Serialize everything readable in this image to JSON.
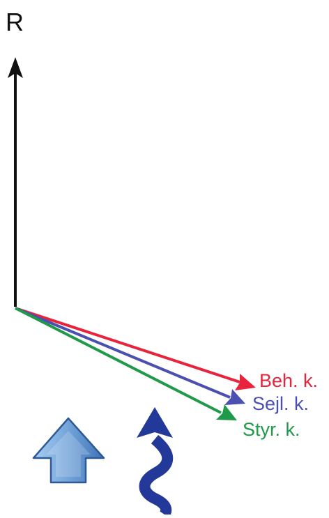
{
  "diagram": {
    "axis_label": "R",
    "vectors": [
      {
        "id": "beh",
        "label": "Beh. k.",
        "color": "#e8233c"
      },
      {
        "id": "sejl",
        "label": "Sejl. k.",
        "color": "#4a4fb0"
      },
      {
        "id": "styr",
        "label": "Styr. k.",
        "color": "#1e9a48"
      }
    ],
    "colors": {
      "axis": "#111111",
      "block_arrow_fill": "#7eaee0",
      "block_arrow_stroke": "#2d5a95",
      "wavy_arrow": "#23399a"
    },
    "icons": {
      "block_arrow": "up-block-arrow-icon",
      "wavy_arrow": "wavy-up-arrow-icon"
    }
  }
}
